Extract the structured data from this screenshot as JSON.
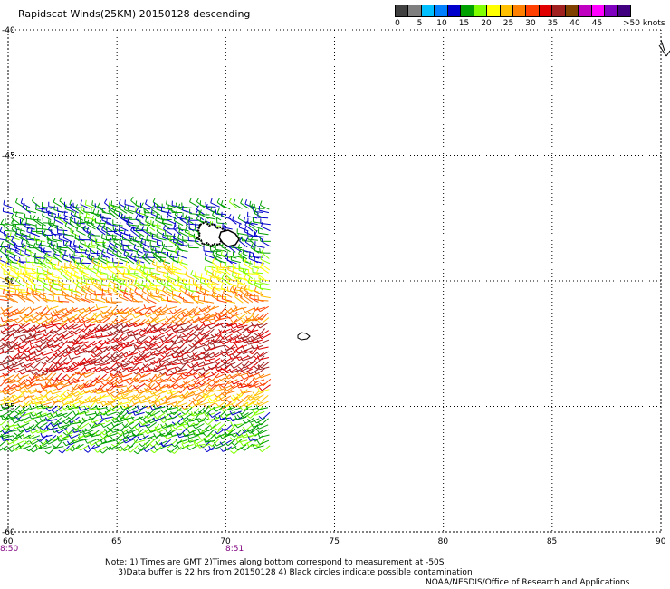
{
  "title": "Rapidscat Winds(25KM) 20150128 descending",
  "legend": {
    "ticks": [
      "0",
      "5",
      "10",
      "15",
      "20",
      "25",
      "30",
      "35",
      "40",
      "45",
      ">50"
    ],
    "units": "knots",
    "colors": [
      "#404040",
      "#7f7f7f",
      "#00bfff",
      "#0080ff",
      "#0000cc",
      "#00a000",
      "#7fff00",
      "#ffff00",
      "#ffc000",
      "#ff8000",
      "#ff4000",
      "#e00000",
      "#a02020",
      "#7f4000",
      "#c000c0",
      "#ff00ff",
      "#8000c0",
      "#400080"
    ]
  },
  "axes": {
    "lon_labels": [
      "60",
      "65",
      "70",
      "75",
      "80",
      "85",
      "90"
    ],
    "lat_labels": [
      "-40",
      "-45",
      "-50",
      "-55",
      "-60"
    ]
  },
  "times": [
    "8:50",
    "8:51"
  ],
  "notes": {
    "line1": "Note: 1) Times are GMT 2)Times along bottom correspond to measurement at -50S",
    "line2": "     3)Data buffer is 22 hrs from 20150128 4) Black circles indicate possible contamination"
  },
  "credit": "NOAA/NESDIS/Office of Research and Applications",
  "map": {
    "type": "wind-barb swath",
    "lon_range": [
      60,
      90
    ],
    "lat_range": [
      -60,
      -40
    ],
    "grid": true,
    "swath": {
      "lon_range": [
        60,
        72
      ],
      "lat_range": [
        -56.7,
        -47.1
      ],
      "speed_bands_knots": [
        {
          "lat": [
            -49.5,
            -47.1
          ],
          "speed": 12
        },
        {
          "lat": [
            -50.5,
            -49.5
          ],
          "speed": 18
        },
        {
          "lat": [
            -51.5,
            -50.5
          ],
          "speed": 24
        },
        {
          "lat": [
            -53.5,
            -51.5
          ],
          "speed": 31
        },
        {
          "lat": [
            -54.2,
            -53.5
          ],
          "speed": 26
        },
        {
          "lat": [
            -55.0,
            -54.2
          ],
          "speed": 21
        },
        {
          "lat": [
            -56.7,
            -55.0
          ],
          "speed": 13
        }
      ]
    }
  }
}
